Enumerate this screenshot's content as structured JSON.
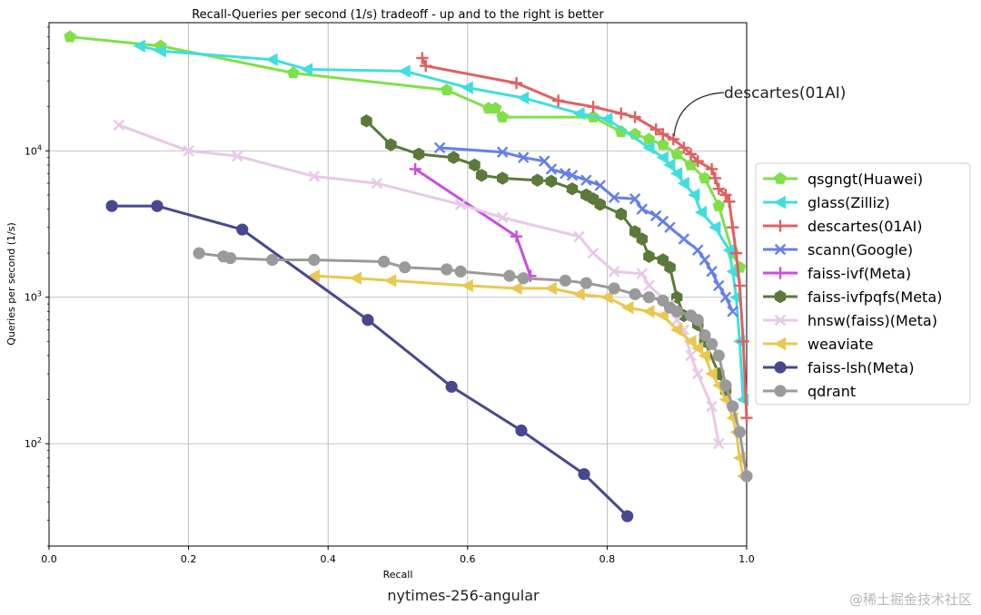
{
  "chart_data": {
    "type": "line",
    "title": "Recall-Queries per second (1/s) tradeoff - up and to the right is better",
    "xlabel": "Recall",
    "ylabel": "Queries per second (1/s)",
    "xlim": [
      0.0,
      1.0
    ],
    "ylim": [
      20,
      75000
    ],
    "yscale": "log",
    "grid": true,
    "legend_position": "right",
    "x_ticks": [
      "0.0",
      "0.2",
      "0.4",
      "0.6",
      "0.8",
      "1.0"
    ],
    "x_tick_values": [
      0.0,
      0.2,
      0.4,
      0.6,
      0.8,
      1.0
    ],
    "y_ticks": [
      {
        "base": "10",
        "exp": "2",
        "value": 100
      },
      {
        "base": "10",
        "exp": "3",
        "value": 1000
      },
      {
        "base": "10",
        "exp": "4",
        "value": 10000
      }
    ],
    "annotation": {
      "text": "descartes(01AI)",
      "x": 0.89,
      "y": 14000
    },
    "series": [
      {
        "name": "qsgngt(Huawei)",
        "color": "#7fe048",
        "marker": "pentagon",
        "x": [
          0.03,
          0.16,
          0.35,
          0.57,
          0.63,
          0.64,
          0.65,
          0.78,
          0.82,
          0.84,
          0.86,
          0.88,
          0.9,
          0.92,
          0.94,
          0.96,
          0.98,
          0.99
        ],
        "y": [
          60000,
          52000,
          34000,
          26000,
          19500,
          19500,
          17000,
          17000,
          13500,
          13000,
          12000,
          11000,
          9500,
          8000,
          6500,
          4200,
          2000,
          1600
        ]
      },
      {
        "name": "glass(Zilliz)",
        "color": "#40dede",
        "marker": "triangle-left",
        "x": [
          0.13,
          0.16,
          0.32,
          0.37,
          0.51,
          0.6,
          0.68,
          0.76,
          0.8,
          0.86,
          0.88,
          0.89,
          0.9,
          0.91,
          0.925,
          0.935,
          0.955,
          0.975,
          0.98,
          0.985,
          0.99,
          0.995
        ],
        "y": [
          52000,
          48000,
          42000,
          36000,
          35000,
          27000,
          23000,
          18000,
          16500,
          10500,
          9000,
          8000,
          7000,
          6000,
          5000,
          3800,
          3000,
          2100,
          1500,
          1000,
          500,
          200
        ]
      },
      {
        "name": "descartes(01AI)",
        "color": "#e06060",
        "marker": "plus",
        "x": [
          0.535,
          0.54,
          0.67,
          0.73,
          0.78,
          0.82,
          0.84,
          0.87,
          0.88,
          0.895,
          0.91,
          0.92,
          0.93,
          0.95,
          0.955,
          0.96,
          0.97,
          0.975,
          0.98,
          0.985,
          0.99,
          0.995,
          1.0
        ],
        "y": [
          43000,
          38000,
          29000,
          22000,
          20000,
          18000,
          17000,
          14000,
          13000,
          12000,
          10500,
          9500,
          8500,
          7500,
          6500,
          5500,
          5000,
          4500,
          3000,
          2000,
          1200,
          500,
          150
        ]
      },
      {
        "name": "scann(Google)",
        "color": "#6480e8",
        "marker": "x",
        "x": [
          0.56,
          0.65,
          0.68,
          0.71,
          0.72,
          0.74,
          0.75,
          0.77,
          0.79,
          0.81,
          0.84,
          0.85,
          0.87,
          0.88,
          0.89,
          0.91,
          0.93,
          0.94,
          0.95,
          0.96,
          0.97,
          0.98
        ],
        "y": [
          10500,
          9800,
          9000,
          8500,
          7500,
          7000,
          6800,
          6300,
          5800,
          4800,
          4700,
          4000,
          3600,
          3300,
          3000,
          2500,
          2100,
          1800,
          1500,
          1200,
          1000,
          800
        ]
      },
      {
        "name": "faiss-ivf(Meta)",
        "color": "#c84ee0",
        "marker": "plus",
        "x": [
          0.525,
          0.67,
          0.69
        ],
        "y": [
          7500,
          2600,
          1400
        ]
      },
      {
        "name": "faiss-ivfpqfs(Meta)",
        "color": "#5a7a3a",
        "marker": "hexagon",
        "x": [
          0.455,
          0.49,
          0.53,
          0.58,
          0.61,
          0.62,
          0.65,
          0.7,
          0.72,
          0.75,
          0.77,
          0.78,
          0.79,
          0.82,
          0.84,
          0.85,
          0.86,
          0.88,
          0.89,
          0.9,
          0.91,
          0.93,
          0.94,
          0.96,
          0.97
        ],
        "y": [
          16000,
          11000,
          9500,
          9000,
          8000,
          6800,
          6500,
          6300,
          6200,
          5500,
          5000,
          4700,
          4300,
          3700,
          2800,
          2500,
          1900,
          1800,
          1600,
          1000,
          750,
          650,
          500,
          300,
          230
        ]
      },
      {
        "name": "hnsw(faiss)(Meta)",
        "color": "#e8c8e8",
        "marker": "x",
        "x": [
          0.1,
          0.2,
          0.27,
          0.38,
          0.47,
          0.59,
          0.65,
          0.76,
          0.78,
          0.81,
          0.85,
          0.86,
          0.89,
          0.9,
          0.91,
          0.92,
          0.93,
          0.95,
          0.96
        ],
        "y": [
          15000,
          10000,
          9200,
          6700,
          6000,
          4300,
          3500,
          2600,
          2000,
          1500,
          1450,
          1200,
          900,
          700,
          600,
          400,
          300,
          180,
          100
        ]
      },
      {
        "name": "weaviate",
        "color": "#e8c850",
        "marker": "triangle-left",
        "x": [
          0.38,
          0.44,
          0.49,
          0.6,
          0.67,
          0.72,
          0.76,
          0.8,
          0.83,
          0.86,
          0.88,
          0.9,
          0.92,
          0.93,
          0.94,
          0.95,
          0.96,
          0.97,
          0.98,
          0.985,
          0.99,
          0.995
        ],
        "y": [
          1400,
          1350,
          1300,
          1200,
          1150,
          1150,
          1050,
          1000,
          850,
          800,
          750,
          600,
          500,
          450,
          400,
          300,
          250,
          200,
          150,
          120,
          80,
          60
        ]
      },
      {
        "name": "faiss-lsh(Meta)",
        "color": "#484890",
        "marker": "circle",
        "x": [
          0.09,
          0.155,
          0.277,
          0.457,
          0.577,
          0.677,
          0.767,
          0.829
        ],
        "y": [
          4200,
          4200,
          2900,
          700,
          245,
          123,
          62,
          32
        ]
      },
      {
        "name": "qdrant",
        "color": "#9a9a9a",
        "marker": "circle",
        "x": [
          0.215,
          0.25,
          0.26,
          0.32,
          0.38,
          0.48,
          0.51,
          0.57,
          0.59,
          0.66,
          0.68,
          0.74,
          0.77,
          0.81,
          0.84,
          0.86,
          0.88,
          0.89,
          0.9,
          0.92,
          0.93,
          0.94,
          0.95,
          0.96,
          0.97,
          0.98,
          0.99,
          1.0
        ],
        "y": [
          2000,
          1900,
          1850,
          1800,
          1800,
          1750,
          1600,
          1550,
          1500,
          1400,
          1350,
          1300,
          1250,
          1150,
          1050,
          1000,
          950,
          850,
          800,
          750,
          700,
          550,
          480,
          400,
          250,
          180,
          120,
          60
        ]
      }
    ]
  },
  "caption": "nytimes-256-angular",
  "watermark": "@稀土掘金技术社区"
}
